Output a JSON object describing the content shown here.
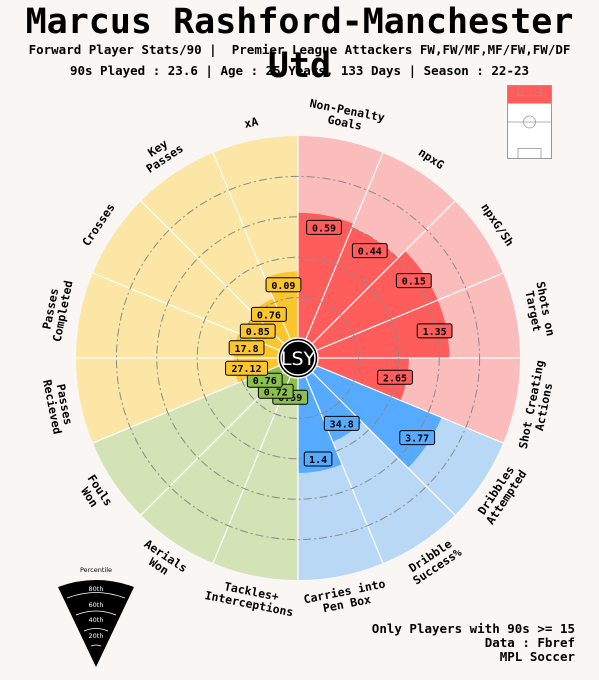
{
  "header": {
    "title": "Marcus Rashford-Manchester Utd",
    "subtitle1": "Forward Player Stats/90 |  Premier League Attackers FW,FW/MF,MF/FW,FW/DF",
    "subtitle2": "90s Played : 23.6 | Age : 25 Years, 133 Days | Season : 22-23"
  },
  "center_label": "LSY",
  "footer": {
    "line1": "Only Players with 90s >= 15",
    "line2": "Data : Fbref",
    "line3": "MPL Soccer"
  },
  "legend": {
    "title": "Percentile",
    "levels": [
      "80th",
      "60th",
      "40th",
      "20th"
    ]
  },
  "colors": {
    "attacking": "#ff5c5c",
    "attacking_bg": "#fbbcbc",
    "possession": "#56aaff",
    "possession_bg": "#b9d8f6",
    "defending": "#8cc04c",
    "defending_bg": "#d3e3b5",
    "passing": "#fbc52d",
    "passing_bg": "#fbe6a6",
    "background": "#f9f6f3"
  },
  "chart_data": {
    "type": "radar-bar",
    "scale": "percentile",
    "rlim": [
      0,
      100
    ],
    "categories": [
      {
        "label": "Non-Penalty Goals",
        "value": "0.59",
        "percentile": 62,
        "group": "attacking"
      },
      {
        "label": "npxG",
        "value": "0.44",
        "percentile": 60,
        "group": "attacking"
      },
      {
        "label": "npxG/Sh",
        "value": "0.15",
        "percentile": 65,
        "group": "attacking"
      },
      {
        "label": "Shots on Target",
        "value": "1.35",
        "percentile": 65,
        "group": "attacking"
      },
      {
        "label": "Shot Creating Actions",
        "value": "2.65",
        "percentile": 45,
        "group": "attacking"
      },
      {
        "label": "Dribbles Attempted",
        "value": "3.77",
        "percentile": 67,
        "group": "possession"
      },
      {
        "label": "Dribble Success%",
        "value": "34.8",
        "percentile": 35,
        "group": "possession"
      },
      {
        "label": "Carries into Pen Box",
        "value": "1.4",
        "percentile": 47,
        "group": "possession"
      },
      {
        "label": "Tackles+ Interceptions",
        "value": "0.59",
        "percentile": 10,
        "group": "defending"
      },
      {
        "label": "Aerials Won",
        "value": "0.72",
        "percentile": 10,
        "group": "defending"
      },
      {
        "label": "Fouls Won",
        "value": "0.76",
        "percentile": 10,
        "group": "defending"
      },
      {
        "label": "Passes Recieved",
        "value": "27.12",
        "percentile": 22,
        "group": "passing"
      },
      {
        "label": "Passes Completed",
        "value": "17.8",
        "percentile": 22,
        "group": "passing"
      },
      {
        "label": "Crosses",
        "value": "0.85",
        "percentile": 20,
        "group": "passing"
      },
      {
        "label": "Key Passes",
        "value": "0.76",
        "percentile": 22,
        "group": "passing"
      },
      {
        "label": "xA",
        "value": "0.09",
        "percentile": 33,
        "group": "passing"
      }
    ]
  }
}
